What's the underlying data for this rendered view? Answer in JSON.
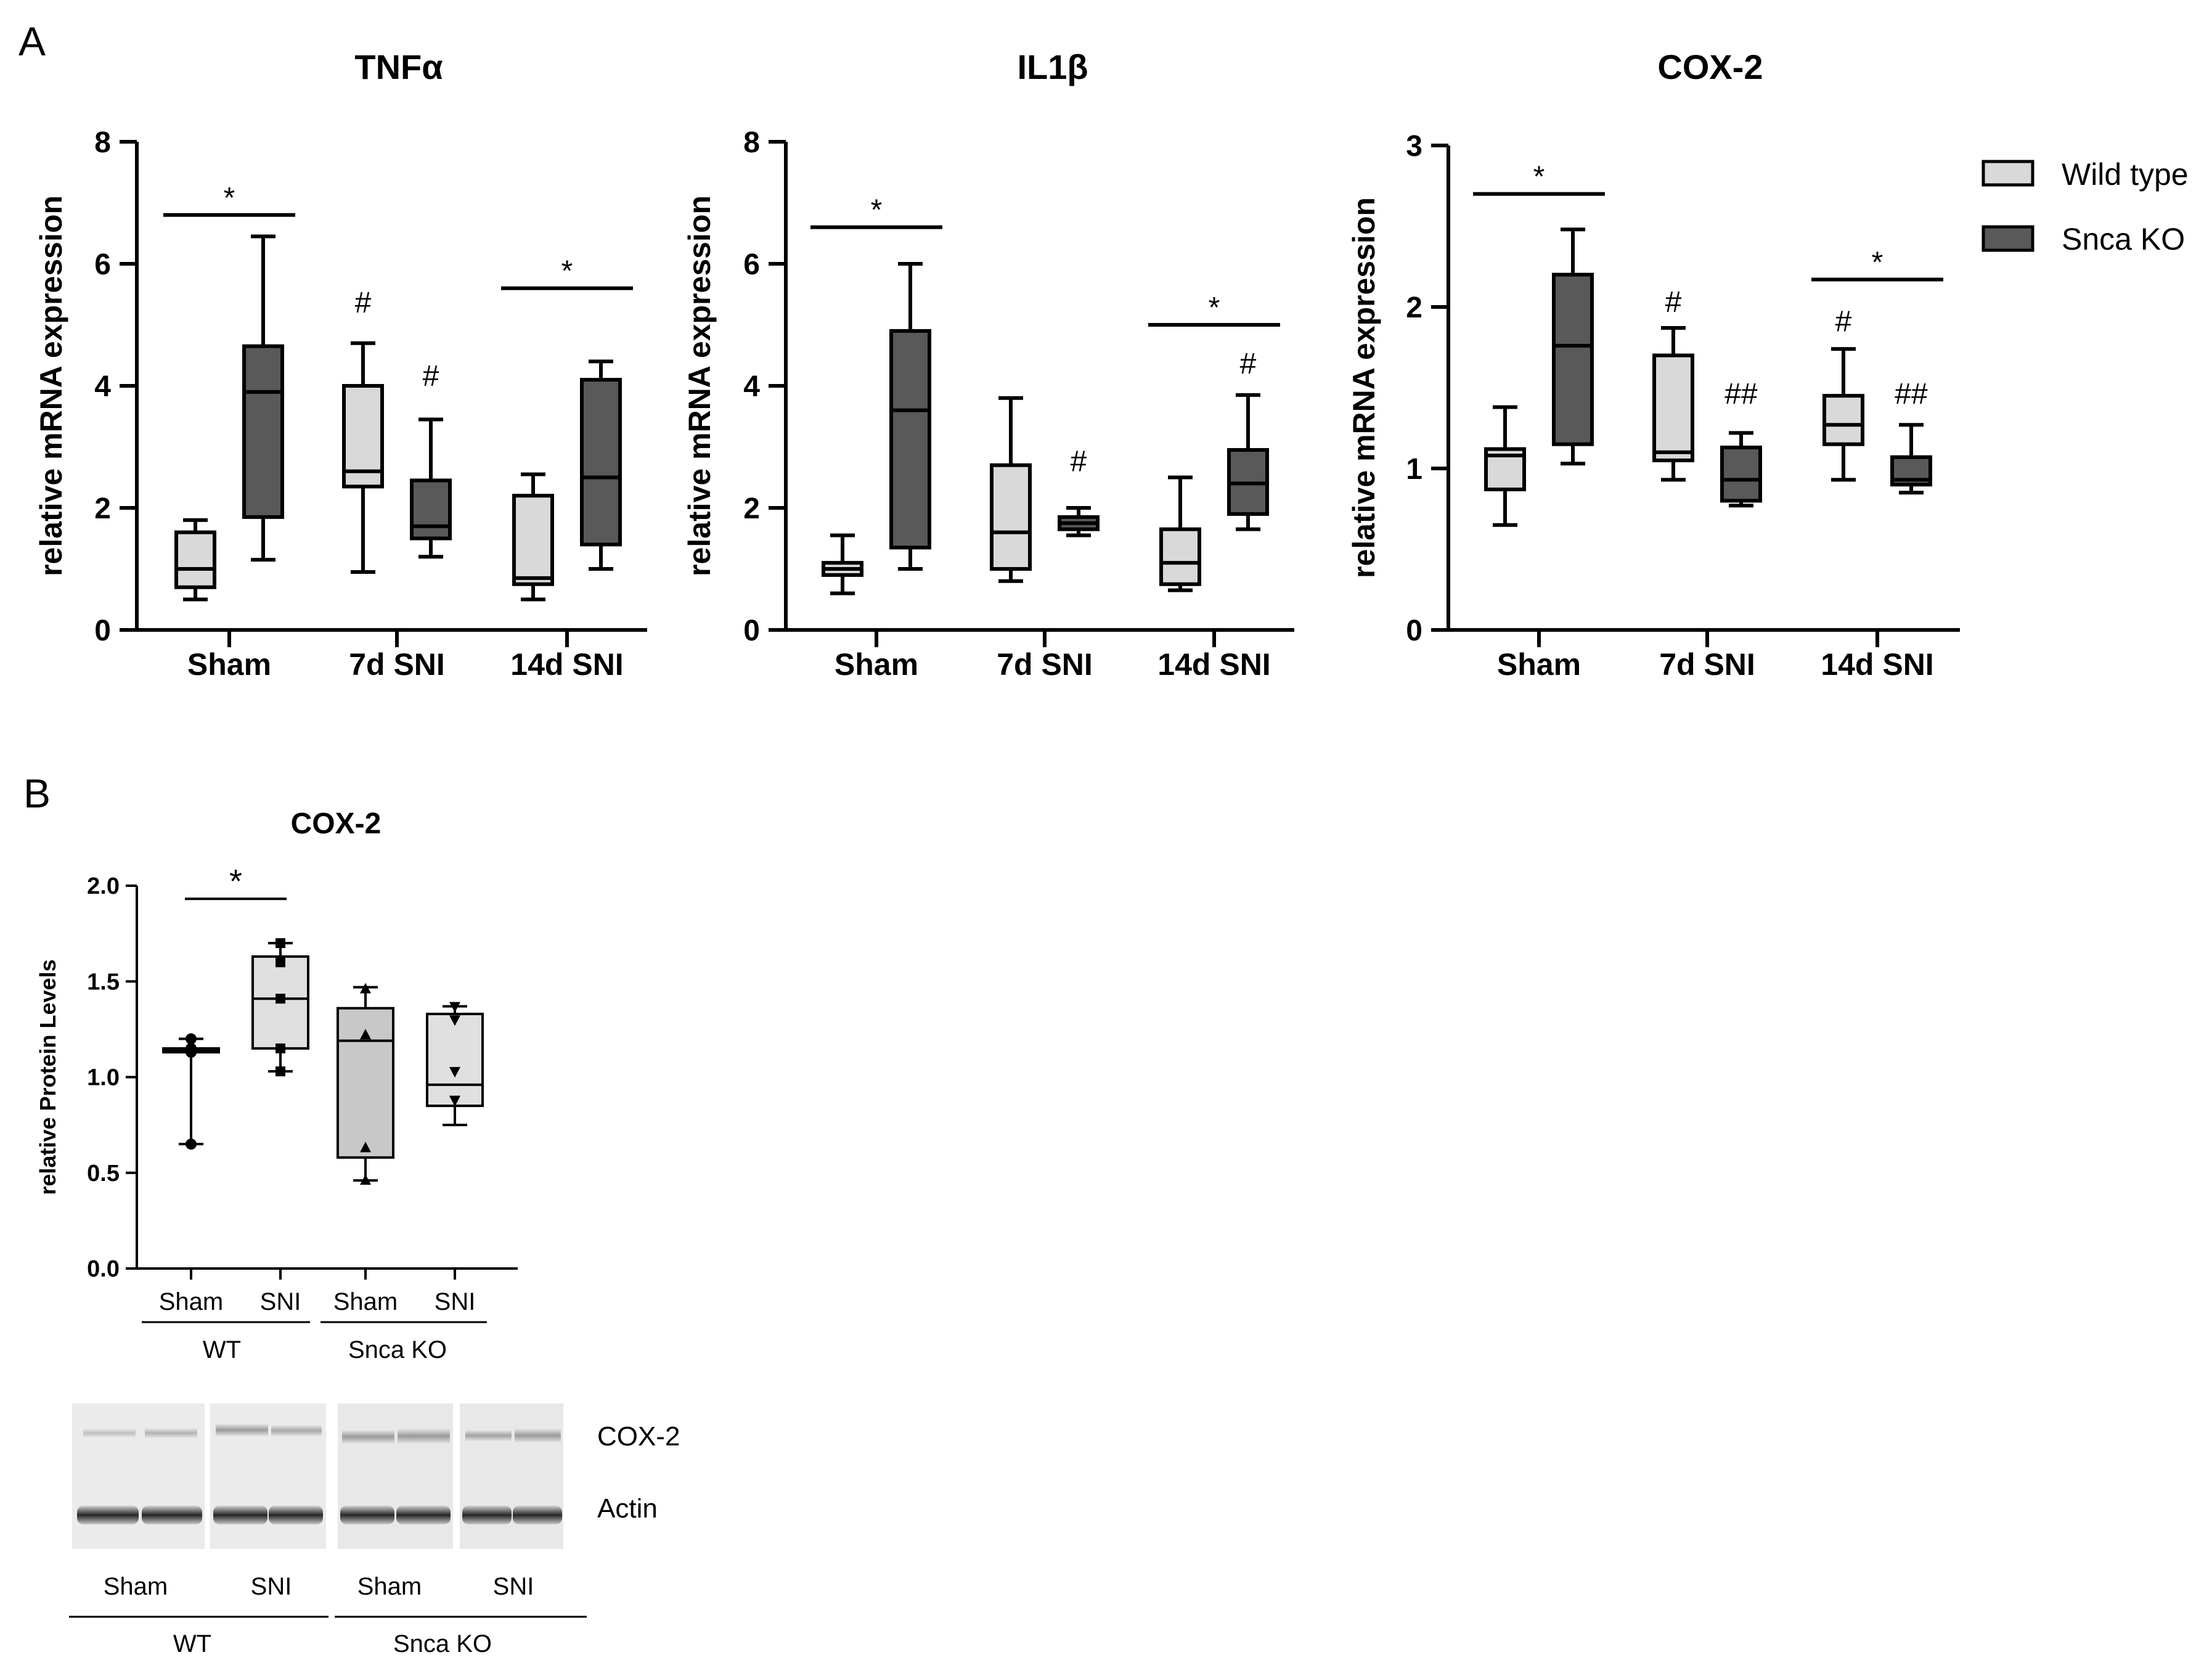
{
  "panel_labels": {
    "a": "A",
    "b": "B"
  },
  "legend": {
    "items": [
      {
        "label": "Wild type",
        "color": "#d9d9d9"
      },
      {
        "label": "Snca KO",
        "color": "#595959"
      }
    ]
  },
  "colors": {
    "light": "#d9d9d9",
    "dark": "#595959",
    "boxB_sham": "#c8c8c8",
    "boxB_light": "#e0e0e0"
  },
  "chart_data": [
    {
      "type": "box",
      "title": "TNFα",
      "ylabel": "relative mRNA expression",
      "ylim": [
        0,
        8
      ],
      "yticks": [
        0,
        2,
        4,
        6,
        8
      ],
      "categories": [
        "Sham",
        "7d SNI",
        "14d SNI"
      ],
      "series": [
        {
          "name": "Wild type",
          "boxes": [
            {
              "min": 0.5,
              "q1": 0.7,
              "median": 1.0,
              "q3": 1.6,
              "max": 1.8
            },
            {
              "min": 0.95,
              "q1": 2.35,
              "median": 2.6,
              "q3": 4.0,
              "max": 4.7
            },
            {
              "min": 0.5,
              "q1": 0.75,
              "median": 0.85,
              "q3": 2.2,
              "max": 2.55
            }
          ]
        },
        {
          "name": "Snca KO",
          "boxes": [
            {
              "min": 1.15,
              "q1": 1.85,
              "median": 3.9,
              "q3": 4.65,
              "max": 6.45
            },
            {
              "min": 1.2,
              "q1": 1.5,
              "median": 1.7,
              "q3": 2.45,
              "max": 3.45
            },
            {
              "min": 1.0,
              "q1": 1.4,
              "median": 2.5,
              "q3": 4.1,
              "max": 4.4
            }
          ]
        }
      ],
      "annotations": [
        {
          "text": "*",
          "type": "bracket",
          "category": 0,
          "y": 6.8
        },
        {
          "text": "#",
          "type": "mark",
          "category": 1,
          "series": 0,
          "y": 5.2
        },
        {
          "text": "#",
          "type": "mark",
          "category": 1,
          "series": 1,
          "y": 4.0
        },
        {
          "text": "*",
          "type": "bracket",
          "category": 2,
          "y": 5.6
        }
      ]
    },
    {
      "type": "box",
      "title": "IL1β",
      "ylabel": "relative mRNA expression",
      "ylim": [
        0,
        8
      ],
      "yticks": [
        0,
        2,
        4,
        6,
        8
      ],
      "categories": [
        "Sham",
        "7d SNI",
        "14d SNI"
      ],
      "series": [
        {
          "name": "Wild type",
          "boxes": [
            {
              "min": 0.6,
              "q1": 0.9,
              "median": 1.0,
              "q3": 1.1,
              "max": 1.55
            },
            {
              "min": 0.8,
              "q1": 1.0,
              "median": 1.6,
              "q3": 2.7,
              "max": 3.8
            },
            {
              "min": 0.65,
              "q1": 0.75,
              "median": 1.1,
              "q3": 1.65,
              "max": 2.5
            }
          ]
        },
        {
          "name": "Snca KO",
          "boxes": [
            {
              "min": 1.0,
              "q1": 1.35,
              "median": 3.6,
              "q3": 4.9,
              "max": 6.0
            },
            {
              "min": 1.55,
              "q1": 1.65,
              "median": 1.75,
              "q3": 1.85,
              "max": 2.0
            },
            {
              "min": 1.65,
              "q1": 1.9,
              "median": 2.4,
              "q3": 2.95,
              "max": 3.85
            }
          ]
        }
      ],
      "annotations": [
        {
          "text": "*",
          "type": "bracket",
          "category": 0,
          "y": 6.6
        },
        {
          "text": "#",
          "type": "mark",
          "category": 1,
          "series": 1,
          "y": 2.6
        },
        {
          "text": "*",
          "type": "bracket",
          "category": 2,
          "y": 5.0
        },
        {
          "text": "#",
          "type": "mark",
          "category": 2,
          "series": 1,
          "y": 4.2
        }
      ]
    },
    {
      "type": "box",
      "title": "COX-2",
      "ylabel": "relative mRNA expression",
      "ylim": [
        0,
        3
      ],
      "yticks": [
        0,
        1,
        2,
        3
      ],
      "categories": [
        "Sham",
        "7d SNI",
        "14d SNI"
      ],
      "series": [
        {
          "name": "Wild type",
          "boxes": [
            {
              "min": 0.65,
              "q1": 0.87,
              "median": 1.08,
              "q3": 1.12,
              "max": 1.38
            },
            {
              "min": 0.93,
              "q1": 1.05,
              "median": 1.1,
              "q3": 1.7,
              "max": 1.87
            },
            {
              "min": 0.93,
              "q1": 1.15,
              "median": 1.27,
              "q3": 1.45,
              "max": 1.74
            }
          ]
        },
        {
          "name": "Snca KO",
          "boxes": [
            {
              "min": 1.03,
              "q1": 1.15,
              "median": 1.76,
              "q3": 2.2,
              "max": 2.48
            },
            {
              "min": 0.77,
              "q1": 0.8,
              "median": 0.93,
              "q3": 1.13,
              "max": 1.22
            },
            {
              "min": 0.85,
              "q1": 0.9,
              "median": 0.93,
              "q3": 1.07,
              "max": 1.27
            }
          ]
        }
      ],
      "annotations": [
        {
          "text": "*",
          "type": "bracket",
          "category": 0,
          "y": 2.7
        },
        {
          "text": "#",
          "type": "mark",
          "category": 1,
          "series": 0,
          "y": 1.97
        },
        {
          "text": "##",
          "type": "mark",
          "category": 1,
          "series": 1,
          "y": 1.4
        },
        {
          "text": "#",
          "type": "mark",
          "category": 2,
          "series": 0,
          "y": 1.85
        },
        {
          "text": "##",
          "type": "mark",
          "category": 2,
          "series": 1,
          "y": 1.4
        },
        {
          "text": "*",
          "type": "bracket",
          "category": 2,
          "y": 2.17
        }
      ]
    },
    {
      "type": "box",
      "title": "COX-2",
      "ylabel": "relative Protein Levels",
      "ylim": [
        0,
        2.0
      ],
      "yticks": [
        "0.0",
        "0.5",
        "1.0",
        "1.5",
        "2.0"
      ],
      "categories": [
        "Sham",
        "SNI",
        "Sham",
        "SNI"
      ],
      "groups": [
        "WT",
        "Snca KO"
      ],
      "boxes": [
        {
          "label": "Sham",
          "group": "WT",
          "min": 0.65,
          "q1": 1.13,
          "median": 1.14,
          "q3": 1.15,
          "max": 1.2,
          "points": [
            0.65,
            1.13,
            1.15,
            1.2
          ],
          "marker": "circle"
        },
        {
          "label": "SNI",
          "group": "WT",
          "min": 1.03,
          "q1": 1.15,
          "median": 1.41,
          "q3": 1.63,
          "max": 1.7,
          "points": [
            1.03,
            1.15,
            1.41,
            1.6,
            1.7
          ],
          "marker": "square"
        },
        {
          "label": "Sham",
          "group": "Snca KO",
          "min": 0.46,
          "q1": 0.58,
          "median": 1.19,
          "q3": 1.36,
          "max": 1.47,
          "points": [
            0.46,
            0.63,
            1.22,
            1.46
          ],
          "marker": "triangle-up"
        },
        {
          "label": "SNI",
          "group": "Snca KO",
          "min": 0.75,
          "q1": 0.85,
          "median": 0.96,
          "q3": 1.33,
          "max": 1.37,
          "points": [
            0.88,
            0.88,
            1.03,
            1.3,
            1.37
          ],
          "marker": "triangle-down"
        }
      ],
      "annotations": [
        {
          "text": "*",
          "type": "bracket",
          "between": [
            0,
            1
          ],
          "y": 1.98
        }
      ]
    }
  ],
  "blot": {
    "band_labels": [
      "COX-2",
      "Actin"
    ],
    "lane_labels": [
      "Sham",
      "SNI",
      "Sham",
      "SNI"
    ],
    "group_labels": [
      "WT",
      "Snca KO"
    ]
  }
}
